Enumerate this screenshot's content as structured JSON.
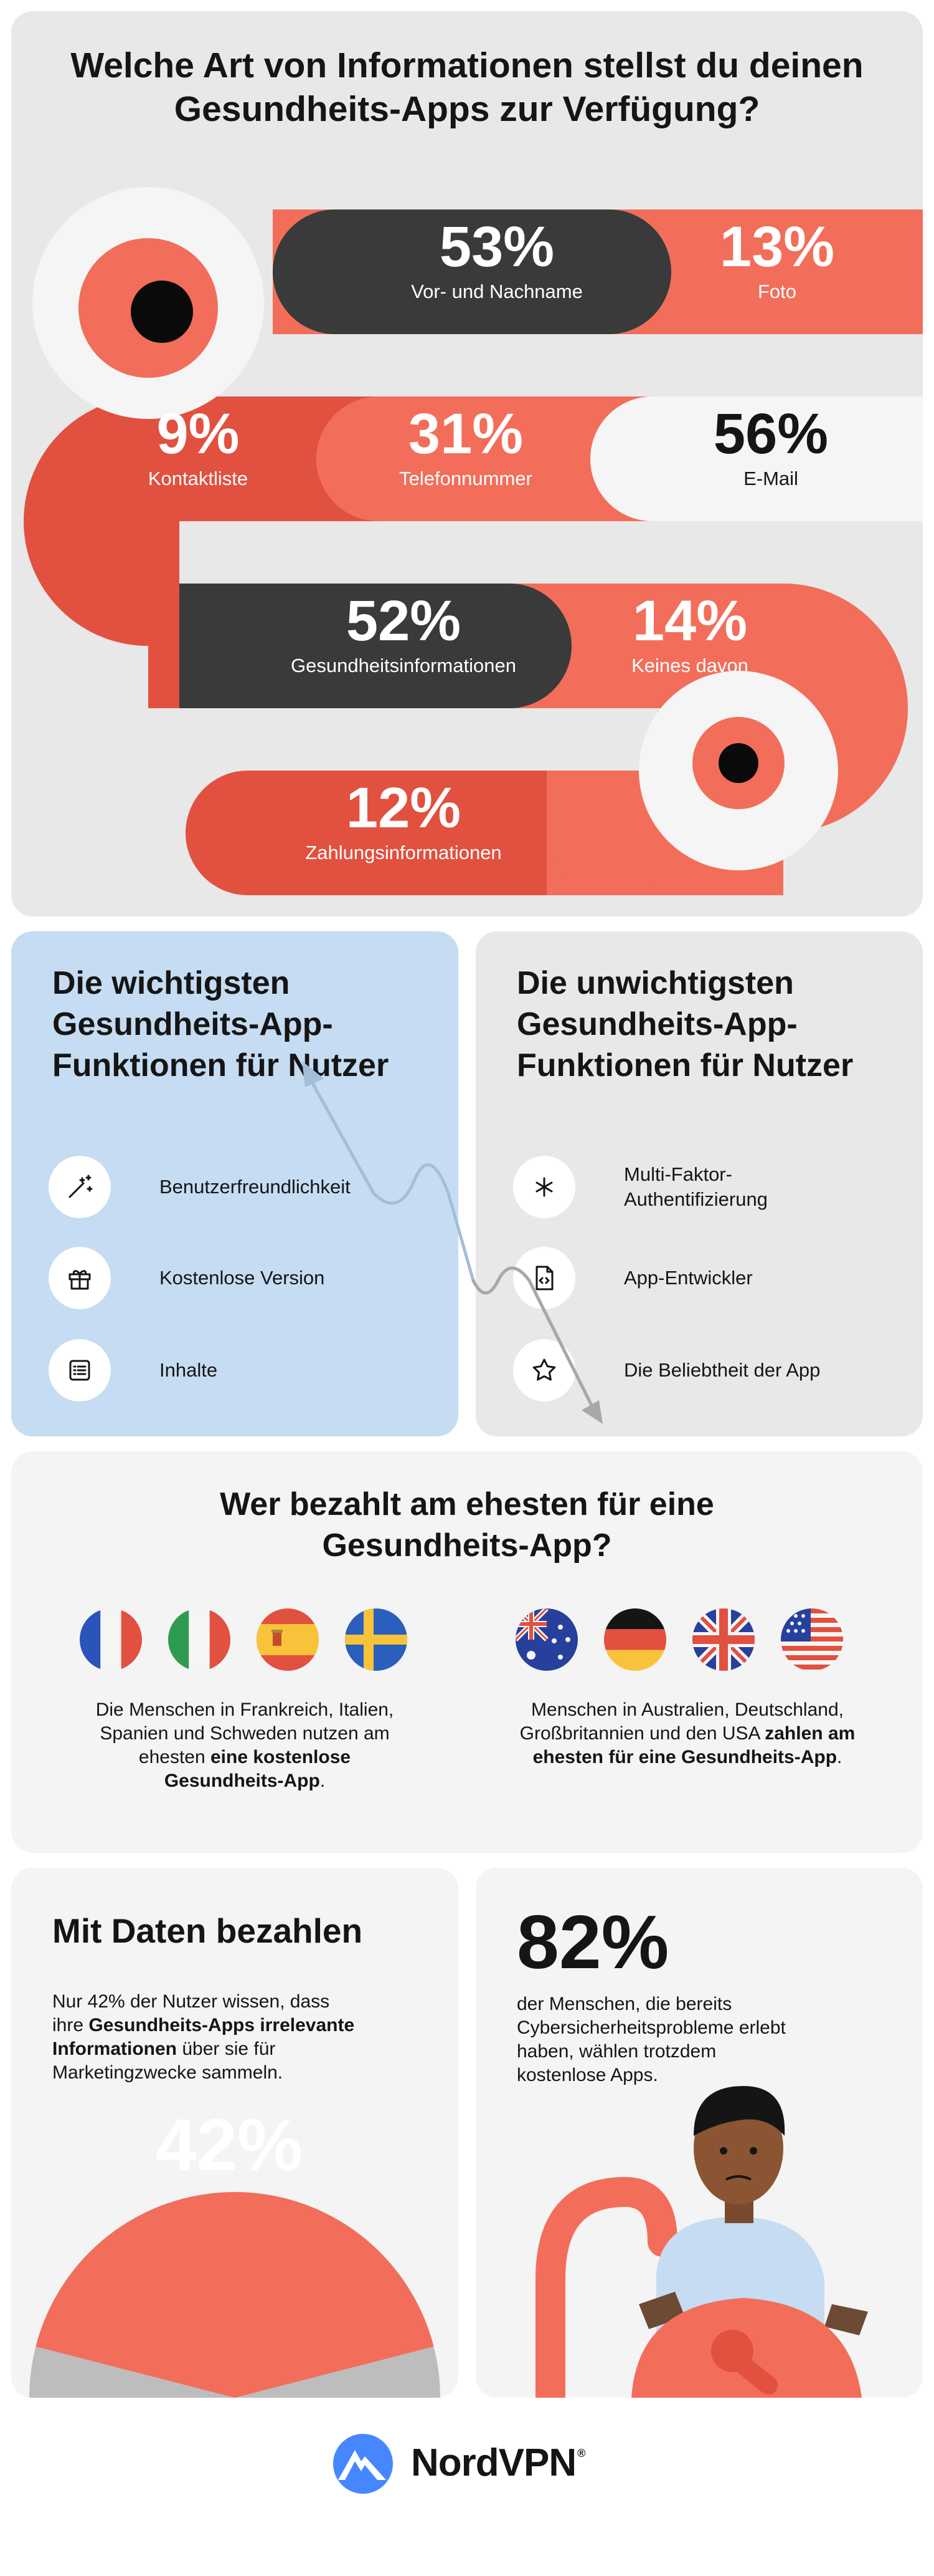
{
  "section1": {
    "title_line1": "Welche Art von Informationen stellst du deinen",
    "title_line2": "Gesundheits-Apps zur Verfügung?",
    "stats": [
      {
        "value": "53%",
        "label": "Vor- und Nachname"
      },
      {
        "value": "13%",
        "label": "Foto"
      },
      {
        "value": "9%",
        "label": "Kontaktliste"
      },
      {
        "value": "31%",
        "label": "Telefonnummer"
      },
      {
        "value": "56%",
        "label": "E-Mail"
      },
      {
        "value": "52%",
        "label": "Gesundheitsinformationen"
      },
      {
        "value": "14%",
        "label": "Keines davon"
      },
      {
        "value": "12%",
        "label": "Zahlungsinformationen"
      }
    ]
  },
  "features_top": {
    "title_line1": "Die wichtigsten",
    "title_line2": "Gesundheits-App-",
    "title_line3": "Funktionen für Nutzer",
    "items": [
      {
        "label": "Benutzerfreundlichkeit",
        "icon": "magic-wand-icon"
      },
      {
        "label": "Kostenlose Version",
        "icon": "gift-icon"
      },
      {
        "label": "Inhalte",
        "icon": "list-icon"
      }
    ]
  },
  "features_bottom": {
    "title_line1": "Die unwichtigsten",
    "title_line2": "Gesundheits-App-",
    "title_line3": "Funktionen für Nutzer",
    "items": [
      {
        "label_line1": "Multi-Faktor-",
        "label_line2": "Authentifizierung",
        "icon": "asterisk-icon"
      },
      {
        "label": "App-Entwickler",
        "icon": "code-file-icon"
      },
      {
        "label": "Die Beliebtheit der App",
        "icon": "star-icon"
      }
    ]
  },
  "payers": {
    "title_line1": "Wer bezahlt am ehesten für eine",
    "title_line2": "Gesundheits-App?",
    "free_group": {
      "flags": [
        "france-flag",
        "italy-flag",
        "spain-flag",
        "sweden-flag"
      ],
      "text_line1": "Die Menschen in Frankreich, Italien,",
      "text_line2": "Spanien und Schweden nutzen am",
      "text_line3_plain": "ehesten ",
      "text_line3_bold": "eine kostenlose",
      "text_line4_bold": "Gesundheits-App",
      "text_line4_plain": "."
    },
    "paid_group": {
      "flags": [
        "australia-flag",
        "germany-flag",
        "uk-flag",
        "usa-flag"
      ],
      "text_line1": "Menschen in Australien, Deutschland,",
      "text_line2_plain": "Großbritannien und den USA ",
      "text_line2_bold": "zahlen am",
      "text_line3_bold": "ehesten für eine Gesundheits-App",
      "text_line3_plain": "."
    }
  },
  "data_pay": {
    "title": "Mit Daten bezahlen",
    "text_line1": "Nur 42% der Nutzer wissen, dass",
    "text_line2_plain": "ihre ",
    "text_line2_bold": "Gesundheits-Apps irrelevante",
    "text_line3_bold": "Informationen",
    "text_line3_plain": " über sie für",
    "text_line4": "Marketingzwecke sammeln.",
    "big_value": "42%",
    "share": 0.42
  },
  "cyber": {
    "big_value": "82%",
    "text_line1": "der Menschen, die bereits",
    "text_line2": "Cybersicherheitsprobleme erlebt",
    "text_line3": "haben, wählen trotzdem",
    "text_line4": "kostenlose Apps."
  },
  "footer": {
    "brand": "NordVPN",
    "reg": "®"
  },
  "colors": {
    "coral": "#f26e5a",
    "red": "#e2503f",
    "dark": "#3a3a3a",
    "white": "#f5f5f5",
    "grey_bg": "#e8e8e8",
    "light_bg": "#f4f4f4",
    "blue_bg": "#c5dcf2",
    "nord_blue": "#4687ff"
  }
}
